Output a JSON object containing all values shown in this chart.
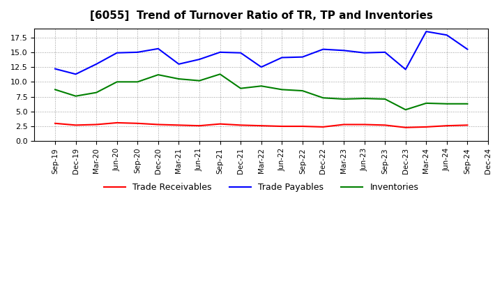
{
  "title": "[6055]  Trend of Turnover Ratio of TR, TP and Inventories",
  "x_labels": [
    "Sep-19",
    "Dec-19",
    "Mar-20",
    "Jun-20",
    "Sep-20",
    "Dec-20",
    "Mar-21",
    "Jun-21",
    "Sep-21",
    "Dec-21",
    "Mar-22",
    "Jun-22",
    "Sep-22",
    "Dec-22",
    "Mar-23",
    "Jun-23",
    "Sep-23",
    "Dec-23",
    "Mar-24",
    "Jun-24",
    "Sep-24",
    "Dec-24"
  ],
  "trade_receivables": [
    3.0,
    2.7,
    2.8,
    3.1,
    3.0,
    2.8,
    2.7,
    2.6,
    2.9,
    2.7,
    2.6,
    2.5,
    2.5,
    2.4,
    2.8,
    2.8,
    2.7,
    2.3,
    2.4,
    2.6,
    2.7,
    null
  ],
  "trade_payables": [
    12.2,
    11.3,
    13.0,
    14.9,
    15.0,
    15.6,
    13.0,
    13.8,
    15.0,
    14.9,
    12.5,
    14.1,
    14.2,
    15.5,
    15.3,
    14.9,
    15.0,
    12.1,
    18.5,
    17.9,
    15.5,
    null
  ],
  "inventories": [
    8.7,
    7.6,
    8.2,
    10.0,
    10.0,
    11.2,
    10.5,
    10.2,
    11.3,
    8.9,
    9.3,
    8.7,
    8.5,
    7.3,
    7.1,
    7.2,
    7.1,
    5.3,
    6.4,
    6.3,
    6.3,
    null
  ],
  "tr_color": "#ff0000",
  "tp_color": "#0000ff",
  "inv_color": "#008000",
  "ylim": [
    0.0,
    19.0
  ],
  "yticks": [
    0.0,
    2.5,
    5.0,
    7.5,
    10.0,
    12.5,
    15.0,
    17.5
  ],
  "figsize": [
    7.2,
    4.4
  ],
  "dpi": 100,
  "background_color": "#ffffff",
  "plot_bg_color": "#ffffff",
  "grid_color": "#999999",
  "legend_labels": [
    "Trade Receivables",
    "Trade Payables",
    "Inventories"
  ]
}
